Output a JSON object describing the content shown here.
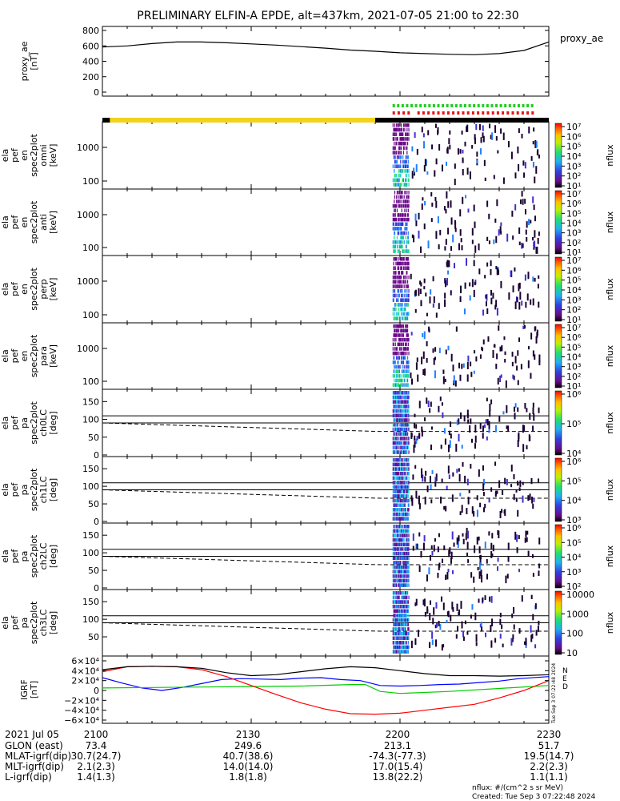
{
  "title": "PRELIMINARY ELFIN-A EPDE, alt=437km, 2021-07-05 21:00 to 22:30",
  "chart_data": {
    "type": "line+spectrogram",
    "panels": [
      {
        "id": "proxy_ae",
        "ylabel": [
          "proxy_ae",
          "[nT]"
        ],
        "yticks": [
          "800",
          "600",
          "400",
          "200",
          "0"
        ],
        "ylim": [
          0,
          800
        ],
        "legend": "proxy_ae",
        "series": [
          {
            "color": "#000000",
            "x": [
              0,
              5,
              10,
              15,
              20,
              25,
              30,
              35,
              40,
              45,
              50,
              55,
              60,
              65,
              70,
              75,
              80,
              85,
              90
            ],
            "y": [
              585,
              600,
              630,
              650,
              650,
              640,
              625,
              610,
              590,
              570,
              545,
              530,
              510,
              500,
              490,
              485,
              500,
              540,
              650
            ]
          }
        ]
      },
      {
        "id": "omni",
        "ylabel": [
          "ela",
          "pef",
          "en",
          "spec2plot",
          "omni",
          "[keV]"
        ],
        "yticks": [
          "1000",
          "100"
        ],
        "cbar_ticks": [
          "10⁷",
          "10⁶",
          "10⁵",
          "10⁴",
          "10³",
          "10²",
          "10¹"
        ],
        "cbar_label": "nflux"
      },
      {
        "id": "anti",
        "ylabel": [
          "ela",
          "pef",
          "en",
          "spec2plot",
          "anti",
          "[keV]"
        ],
        "yticks": [
          "1000",
          "100"
        ],
        "cbar_ticks": [
          "10⁷",
          "10⁶",
          "10⁵",
          "10⁴",
          "10³",
          "10²",
          "10¹"
        ],
        "cbar_label": "nflux"
      },
      {
        "id": "perp",
        "ylabel": [
          "ela",
          "pef",
          "en",
          "spec2plot",
          "perp",
          "[keV]"
        ],
        "yticks": [
          "1000",
          "100"
        ],
        "cbar_ticks": [
          "10⁷",
          "10⁶",
          "10⁵",
          "10⁴",
          "10³",
          "10²",
          "10¹"
        ],
        "cbar_label": "nflux"
      },
      {
        "id": "para",
        "ylabel": [
          "ela",
          "pef",
          "en",
          "spec2plot",
          "para",
          "[keV]"
        ],
        "yticks": [
          "1000",
          "100"
        ],
        "cbar_ticks": [
          "10⁷",
          "10⁶",
          "10⁵",
          "10⁴",
          "10³",
          "10²",
          "10¹"
        ],
        "cbar_label": "nflux"
      },
      {
        "id": "ch0LC",
        "ylabel": [
          "ela",
          "pef",
          "pa",
          "spec2plot",
          "ch0LC",
          "[deg]"
        ],
        "yticks": [
          "150",
          "100",
          "50",
          "0"
        ],
        "cbar_ticks": [
          "10⁶",
          "10⁵",
          "10⁴"
        ],
        "cbar_label": "nflux"
      },
      {
        "id": "ch1LC",
        "ylabel": [
          "ela",
          "pef",
          "pa",
          "spec2plot",
          "ch1LC",
          "[deg]"
        ],
        "yticks": [
          "150",
          "100",
          "50",
          "0"
        ],
        "cbar_ticks": [
          "10⁶",
          "10⁵",
          "10⁴",
          "10³"
        ],
        "cbar_label": "nflux"
      },
      {
        "id": "ch2LC",
        "ylabel": [
          "ela",
          "pef",
          "pa",
          "spec2plot",
          "ch2LC",
          "[deg]"
        ],
        "yticks": [
          "150",
          "100",
          "50",
          "0"
        ],
        "cbar_ticks": [
          "10⁶",
          "10⁵",
          "10⁴",
          "10³",
          "10²"
        ],
        "cbar_label": "nflux"
      },
      {
        "id": "ch3LC",
        "ylabel": [
          "ela",
          "pef",
          "pa",
          "spec2plot",
          "ch3LC",
          "[deg]"
        ],
        "yticks": [
          "150",
          "100",
          "50"
        ],
        "cbar_ticks": [
          "10000",
          "1000",
          "100",
          "10"
        ],
        "cbar_label": "nflux"
      },
      {
        "id": "igrf",
        "ylabel": [
          "IGRF",
          "[nT]"
        ],
        "yticks": [
          "6×10⁴",
          "4×10⁴",
          "2×10⁴",
          "0",
          "−2×10⁴",
          "−4×10⁴",
          "−6×10⁴"
        ],
        "ylim": [
          -60000,
          60000
        ],
        "legend": [
          "N",
          "E",
          "D"
        ],
        "series": [
          {
            "name": "N",
            "color": "#0000ff",
            "x": [
              0,
              4,
              8,
              12,
              16,
              20,
              24,
              28,
              32,
              36,
              40,
              44,
              48,
              52,
              56,
              60,
              64,
              68,
              72,
              76,
              80,
              84,
              90
            ],
            "y": [
              26000,
              15000,
              5000,
              0,
              6000,
              14000,
              22000,
              24000,
              23000,
              22000,
              25000,
              26000,
              22000,
              20000,
              10000,
              9000,
              10000,
              12000,
              13000,
              16000,
              19000,
              24000,
              28000
            ]
          },
          {
            "name": "E",
            "color": "#00cc00",
            "x": [
              0,
              10,
              20,
              30,
              40,
              50,
              53,
              56,
              60,
              70,
              80,
              90
            ],
            "y": [
              5000,
              6000,
              7000,
              8000,
              9000,
              12000,
              12000,
              -2000,
              -6000,
              -2000,
              4000,
              10000
            ]
          },
          {
            "name": "D",
            "color": "#ff0000",
            "x": [
              0,
              5,
              10,
              15,
              20,
              25,
              30,
              35,
              40,
              45,
              50,
              55,
              60,
              65,
              70,
              75,
              80,
              85,
              90
            ],
            "y": [
              38000,
              48000,
              49000,
              48000,
              42000,
              28000,
              10000,
              -8000,
              -25000,
              -38000,
              -47000,
              -48000,
              -46000,
              -40000,
              -34000,
              -28000,
              -15000,
              0,
              20000
            ]
          },
          {
            "name": "total",
            "color": "#000000",
            "x": [
              0,
              5,
              10,
              15,
              20,
              25,
              30,
              35,
              40,
              45,
              50,
              55,
              60,
              65,
              70,
              75,
              80,
              85,
              90
            ],
            "y": [
              42000,
              48000,
              49000,
              48000,
              45000,
              36000,
              30000,
              32000,
              38000,
              44000,
              48000,
              46000,
              40000,
              34000,
              30000,
              30000,
              29000,
              30000,
              32000
            ]
          }
        ]
      }
    ],
    "x_minutes": [
      0,
      30,
      60,
      90
    ],
    "time_labels": [
      "2100",
      "2130",
      "2200",
      "2230"
    ],
    "date_label": "2021 Jul 05",
    "ephem_rows": [
      {
        "label": "GLON (east)",
        "values": [
          "73.4",
          "249.6",
          "213.1",
          "51.7"
        ]
      },
      {
        "label": "MLAT-igrf(dip)",
        "values": [
          "30.7(24.7)",
          "40.7(38.6)",
          "-74.3(-77.3)",
          "19.5(14.7)"
        ]
      },
      {
        "label": "MLT-igrf(dip)",
        "values": [
          "2.1(2.3)",
          "14.0(14.0)",
          "17.0(15.4)",
          "2.2(2.3)"
        ]
      },
      {
        "label": "L-igrf(dip)",
        "values": [
          "1.4(1.3)",
          "1.8(1.8)",
          "13.8(22.2)",
          "1.1(1.1)"
        ]
      }
    ]
  },
  "footer": {
    "units": "nflux: #/(cm^2 s sr MeV)",
    "created": "Created: Tue Sep  3 07:22:48 2024",
    "side_stamp": "Tue Sep  3 07:22:48 2024"
  },
  "colors": {
    "rainbow": [
      "#000000",
      "#6a0a8a",
      "#4030d0",
      "#2080ff",
      "#20d0e0",
      "#20e060",
      "#a0f000",
      "#ffe000",
      "#ff8000",
      "#ff0000"
    ]
  }
}
